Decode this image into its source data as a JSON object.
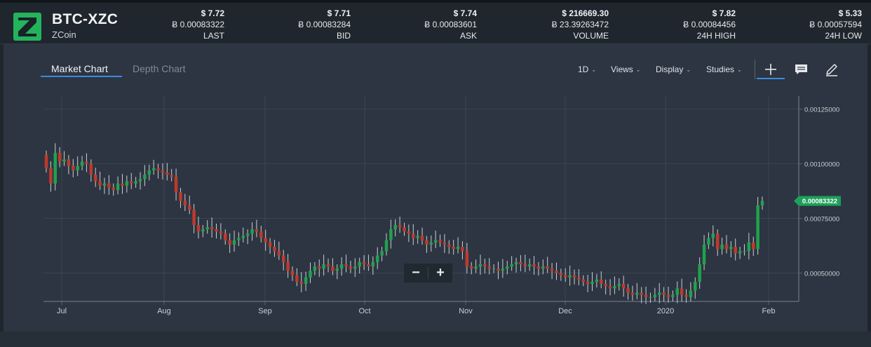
{
  "header": {
    "pair": "BTC-XZC",
    "coin_name": "ZCoin",
    "logo_icon": "zcoin-logo-icon",
    "stats": [
      {
        "usd": "$ 7.72",
        "btc": "Ƀ 0.00083322",
        "label": "LAST"
      },
      {
        "usd": "$ 7.71",
        "btc": "Ƀ 0.00083284",
        "label": "BID"
      },
      {
        "usd": "$ 7.74",
        "btc": "Ƀ 0.00083601",
        "label": "ASK"
      },
      {
        "usd": "$ 216669.30",
        "btc": "Ƀ 23.39263472",
        "label": "VOLUME"
      },
      {
        "usd": "$ 7.82",
        "btc": "Ƀ 0.00084456",
        "label": "24H HIGH"
      },
      {
        "usd": "$ 5.33",
        "btc": "Ƀ 0.00057594",
        "label": "24H LOW"
      }
    ]
  },
  "tabs": {
    "market_chart": "Market Chart",
    "depth_chart": "Depth Chart"
  },
  "toolbar": {
    "interval": "1D",
    "views": "Views",
    "display": "Display",
    "studies": "Studies",
    "tools": [
      "crosshair-icon",
      "comment-icon",
      "pencil-icon"
    ]
  },
  "zoom": {
    "minus": "−",
    "plus": "+"
  },
  "colors": {
    "up": "#1fa24e",
    "down": "#c0392b",
    "accent": "#3d8ae0",
    "price_tag": "#1ea05a"
  },
  "chart_data": {
    "type": "candlestick",
    "x_ticks": [
      "Jul",
      "Aug",
      "Sep",
      "Oct",
      "Nov",
      "Dec",
      "2020",
      "Feb"
    ],
    "y_ticks": [
      "0.00125000",
      "0.00100000",
      "0.00075000",
      "0.00050000"
    ],
    "last_price_label": "0.00083322",
    "ylim": [
      0.00037,
      0.00131
    ],
    "grid": true,
    "close_series": [
      0.00098,
      0.00091,
      0.00105,
      0.00101,
      0.00102,
      0.00099,
      0.00097,
      0.00099,
      0.00101,
      0.001,
      0.00095,
      0.00092,
      0.0009,
      0.00091,
      0.00089,
      0.00088,
      0.00091,
      0.0009,
      0.00092,
      0.00091,
      0.00092,
      0.00093,
      0.00095,
      0.00097,
      0.00098,
      0.00097,
      0.00096,
      0.00095,
      0.00094,
      0.00087,
      0.00083,
      0.00081,
      0.00079,
      0.00072,
      0.00069,
      0.0007,
      0.00071,
      0.0007,
      0.00069,
      0.00068,
      0.00065,
      0.00063,
      0.00065,
      0.00066,
      0.00067,
      0.00068,
      0.0007,
      0.00069,
      0.00066,
      0.00064,
      0.00062,
      0.0006,
      0.00058,
      0.00055,
      0.00051,
      0.00049,
      0.00046,
      0.00045,
      0.00048,
      0.00051,
      0.00053,
      0.00052,
      0.00054,
      0.00053,
      0.00051,
      0.00052,
      0.00054,
      0.00053,
      0.00052,
      0.00053,
      0.00055,
      0.00054,
      0.00053,
      0.00055,
      0.00058,
      0.0006,
      0.00065,
      0.0007,
      0.00072,
      0.00071,
      0.00069,
      0.00068,
      0.00066,
      0.00067,
      0.00065,
      0.00063,
      0.00064,
      0.00065,
      0.00064,
      0.00063,
      0.00062,
      0.00061,
      0.00062,
      0.0006,
      0.00053,
      0.00052,
      0.00053,
      0.00054,
      0.00053,
      0.00052,
      0.00052,
      0.00051,
      0.00052,
      0.00053,
      0.00054,
      0.00055,
      0.00054,
      0.00053,
      0.00054,
      0.00053,
      0.00052,
      0.00053,
      0.00052,
      0.00051,
      0.0005,
      0.00049,
      0.00048,
      0.00049,
      0.00048,
      0.00047,
      0.00046,
      0.00045,
      0.00046,
      0.00047,
      0.00045,
      0.00044,
      0.00043,
      0.00044,
      0.00045,
      0.00043,
      0.00041,
      0.0004,
      0.00041,
      0.0004,
      0.00039,
      0.00039,
      0.0004,
      0.00041,
      0.0004,
      0.00039,
      0.0004,
      0.00043,
      0.0004,
      0.00039,
      0.00042,
      0.00046,
      0.00054,
      0.00063,
      0.00066,
      0.00068,
      0.00061,
      0.00063,
      0.00061,
      0.00062,
      0.00059,
      0.0006,
      0.0006,
      0.00064,
      0.00061,
      0.00081,
      0.00083
    ]
  }
}
